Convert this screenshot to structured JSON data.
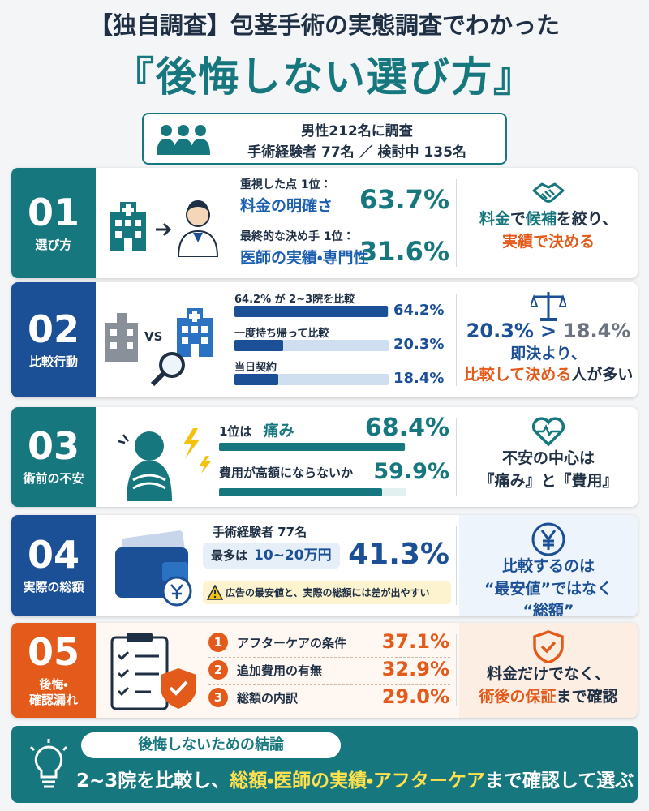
{
  "header": {
    "title_line1": "【独自調査】包茎手術の実態調査でわかった",
    "title_line2": "『後悔しない選び方』"
  },
  "survey": {
    "line1": "男性212名に調査",
    "line2": "手術経験者 77名 ／ 検討中 135名"
  },
  "sections": [
    {
      "number": "01",
      "label": [
        "選び方"
      ],
      "color": "#17777e",
      "items": [
        {
          "caption": "重視した点 1位：",
          "text": "料金の明確さ",
          "value": "63.7%"
        },
        {
          "caption": "最終的な決め手 1位：",
          "text": "医師の実績・専門性",
          "value": "31.6%"
        }
      ],
      "conclusion": [
        [
          {
            "text": "料金",
            "color": "#17777e"
          },
          {
            "text": "で",
            "color": "#1f2f44"
          },
          {
            "text": "候補",
            "color": "#17777e"
          },
          {
            "text": "を絞り、",
            "color": "#1f2f44"
          }
        ],
        [
          {
            "text": "実績で決める",
            "color": "#e35a1a"
          }
        ]
      ]
    },
    {
      "number": "02",
      "label": [
        "比較行動"
      ],
      "color": "#1b4f96",
      "vs": "VS",
      "items": [
        {
          "caption": "64.2% が 2~3院を比較",
          "value": 64.2,
          "value_label": "64.2%"
        },
        {
          "caption": "一度持ち帰って比較",
          "value": 20.3,
          "value_label": "20.3%"
        },
        {
          "caption": "当日契約",
          "value": 18.4,
          "value_label": "18.4%"
        }
      ],
      "conclusion": [
        [
          {
            "text": "20.3%",
            "color": "#1b4f96"
          },
          {
            "text": ">",
            "color": "#1b4f96"
          },
          {
            "text": "18.4%",
            "color": "#6b7280"
          }
        ],
        [
          {
            "text": "即決より、",
            "color": "#1b4f96"
          }
        ],
        [
          {
            "text": "比較して決める",
            "color": "#e35a1a"
          },
          {
            "text": "人が多い",
            "color": "#1f2f44"
          }
        ]
      ]
    },
    {
      "number": "03",
      "label": [
        "術前の不安"
      ],
      "color": "#17777e",
      "items": [
        {
          "caption": "1位は",
          "text": "痛み",
          "value": 68.4,
          "value_label": "68.4%"
        },
        {
          "caption": "費用が高額にならないか",
          "value": 59.9,
          "value_label": "59.9%"
        }
      ],
      "conclusion": [
        [
          {
            "text": "不安の中心は",
            "color": "#1f2f44"
          }
        ],
        [
          {
            "text": "『痛み』と『費用』",
            "color": "#1f2f44"
          }
        ]
      ]
    },
    {
      "number": "04",
      "label": [
        "実際の総額"
      ],
      "color": "#1b4f96",
      "caption": "手術経験者 77名",
      "range_caption": "最多は",
      "range": "10~20万円",
      "value": "41.3%",
      "warning": "広告の最安値と、実際の総額には差が出やすい",
      "conclusion": [
        [
          {
            "text": "比較するのは",
            "color": "#1b4f96"
          }
        ],
        [
          {
            "text": "“最安値”ではなく",
            "color": "#1b4f96"
          }
        ],
        [
          {
            "text": "“総額”",
            "color": "#1b4f96"
          }
        ]
      ]
    },
    {
      "number": "05",
      "label": [
        "後悔・",
        "確認漏れ"
      ],
      "color": "#e35a1a",
      "items": [
        {
          "rank": "1",
          "text": "アフターケアの条件",
          "value": "37.1%"
        },
        {
          "rank": "2",
          "text": "追加費用の有無",
          "value": "32.9%"
        },
        {
          "rank": "3",
          "text": "総額の内訳",
          "value": "29.0%"
        }
      ],
      "conclusion": [
        [
          {
            "text": "料金だけでなく、",
            "color": "#1f2f44"
          }
        ],
        [
          {
            "text": "術後の保証",
            "color": "#e35a1a"
          },
          {
            "text": "まで確認",
            "color": "#1f2f44"
          }
        ]
      ]
    }
  ],
  "footer": {
    "title": "後悔しないための結論",
    "line": [
      {
        "text": "2~3院を比較し、",
        "color": "#ffffff"
      },
      {
        "text": "総額・医師の実績・アフターケア",
        "color": "#ffe14d"
      },
      {
        "text": "まで確認して選ぶ",
        "color": "#ffffff"
      }
    ]
  }
}
